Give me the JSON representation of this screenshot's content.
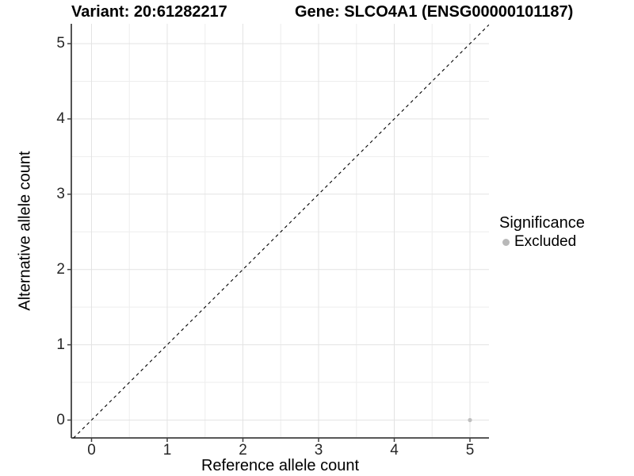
{
  "figure": {
    "title_left": "Variant: 20:61282217",
    "title_right": "Gene: SLCO4A1 (ENSG00000101187)"
  },
  "chart_data": {
    "type": "scatter",
    "title": "Variant: 20:61282217 — Gene: SLCO4A1 (ENSG00000101187)",
    "xlabel": "Reference allele count",
    "ylabel": "Alternative allele count",
    "x_ticks": [
      0,
      1,
      2,
      3,
      4,
      5
    ],
    "y_ticks": [
      0,
      1,
      2,
      3,
      4,
      5
    ],
    "xlim": [
      -0.27,
      5.25
    ],
    "ylim": [
      -0.24,
      5.26
    ],
    "grid": "major+minor",
    "points": [
      {
        "x": 5,
        "y": 0,
        "series": "Excluded"
      }
    ],
    "reference_line": {
      "slope": 1,
      "intercept": 0,
      "style": "dashed"
    },
    "legend": {
      "title": "Significance",
      "position": "right",
      "entries": [
        {
          "label": "Excluded",
          "color": "#b9b9b9"
        }
      ]
    }
  },
  "colors": {
    "point": "#bfbfbf",
    "legend_dot": "#b9b9b9",
    "axis_line": "#404040",
    "grid_major": "#e3e3e3",
    "grid_minor": "#eeeeee",
    "dashed_line": "#000000"
  }
}
